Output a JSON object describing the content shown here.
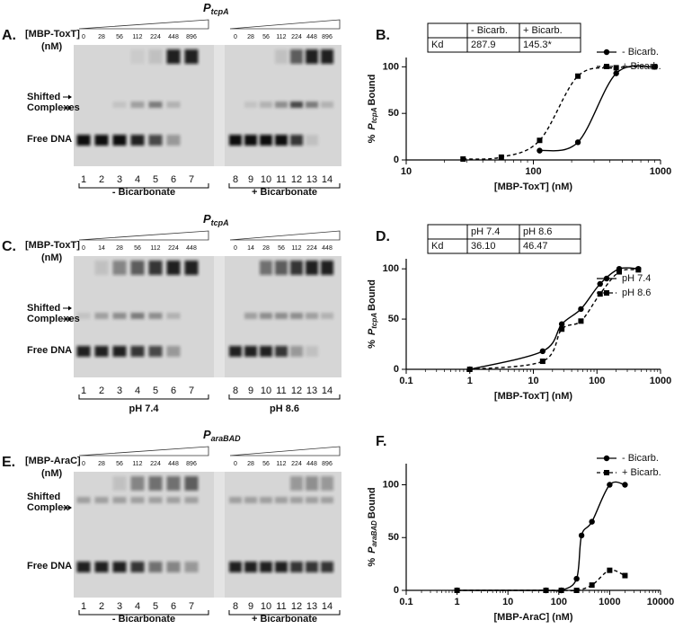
{
  "gels": [
    {
      "panel": "A.",
      "title": {
        "italic": "P",
        "sub": "tcpA"
      },
      "protein": "[MBP-ToxT]",
      "unit": "(nM)",
      "concentrations": [
        0,
        28,
        56,
        112,
        224,
        448,
        896
      ],
      "shifted": [
        "Shifted",
        "Complexes"
      ],
      "free": "Free DNA",
      "lanes": [
        1,
        2,
        3,
        4,
        5,
        6,
        7,
        8,
        9,
        10,
        11,
        12,
        13,
        14
      ],
      "groups": [
        "- Bicarbonate",
        "+ Bicarbonate"
      ]
    },
    {
      "panel": "C.",
      "title": {
        "italic": "P",
        "sub": "tcpA"
      },
      "protein": "[MBP-ToxT]",
      "unit": "(nM)",
      "concentrations": [
        0,
        14,
        28,
        56,
        112,
        224,
        448
      ],
      "shifted": [
        "Shifted",
        "Complexes"
      ],
      "free": "Free DNA",
      "lanes": [
        1,
        2,
        3,
        4,
        5,
        6,
        7,
        8,
        9,
        10,
        11,
        12,
        13,
        14
      ],
      "groups": [
        "pH 7.4",
        "pH 8.6"
      ]
    },
    {
      "panel": "E.",
      "title": {
        "italic": "P",
        "sub": "araBAD"
      },
      "protein": "[MBP-AraC]",
      "unit": "(nM)",
      "concentrations": [
        0,
        28,
        56,
        112,
        224,
        448,
        896
      ],
      "shifted": [
        "Shifted",
        "Complex"
      ],
      "free": "Free DNA",
      "lanes": [
        1,
        2,
        3,
        4,
        5,
        6,
        7,
        8,
        9,
        10,
        11,
        12,
        13,
        14
      ],
      "groups": [
        "- Bicarbonate",
        "+ Bicarbonate"
      ]
    }
  ],
  "chart_data": [
    {
      "type": "scatter",
      "panel": "B.",
      "xlabel": "[MBP-ToxT] (nM)",
      "ylabel": {
        "prefix": "%",
        "italic": "P",
        "sub": "tcpA",
        "suffix": "Bound"
      },
      "xlog": true,
      "xlim": [
        10,
        1000
      ],
      "xticks": [
        10,
        100,
        1000
      ],
      "ylim": [
        0,
        110
      ],
      "yticks": [
        0,
        50,
        100
      ],
      "legend": "upper right",
      "table": {
        "columns": [
          "- Bicarb.",
          "+ Bicarb."
        ],
        "row_label": "Kd",
        "cells": [
          "287.9",
          "145.3*"
        ]
      },
      "series": [
        {
          "name": "- Bicarb.",
          "color": "#000000",
          "marker": "circle",
          "dashed": false,
          "x": [
            112,
            224,
            448,
            896
          ],
          "values": [
            10,
            19,
            93,
            100
          ]
        },
        {
          "name": "+ Bicarb.",
          "color": "#000000",
          "marker": "square",
          "dashed": true,
          "x": [
            28,
            56,
            112,
            224,
            448,
            896
          ],
          "values": [
            1,
            3,
            21,
            90,
            99,
            100
          ]
        }
      ]
    },
    {
      "type": "scatter",
      "panel": "D.",
      "xlabel": "[MBP-ToxT] (nM)",
      "ylabel": {
        "prefix": "%",
        "italic": "P",
        "sub": "tcpA",
        "suffix": "Bound"
      },
      "xlog": true,
      "xlim": [
        0.1,
        1000
      ],
      "xticks": [
        0.1,
        1,
        10,
        100,
        1000
      ],
      "ylim": [
        0,
        110
      ],
      "yticks": [
        0,
        50,
        100
      ],
      "legend": "upper right",
      "table": {
        "columns": [
          "pH 7.4",
          "pH 8.6"
        ],
        "row_label": "Kd",
        "cells": [
          "36.10",
          "46.47"
        ]
      },
      "series": [
        {
          "name": "pH 7.4",
          "color": "#000000",
          "marker": "circle",
          "dashed": false,
          "x": [
            1,
            14,
            28,
            56,
            112,
            224,
            448
          ],
          "values": [
            0,
            18,
            45,
            60,
            85,
            100,
            100
          ]
        },
        {
          "name": "pH 8.6",
          "color": "#000000",
          "marker": "square",
          "dashed": true,
          "x": [
            1,
            14,
            28,
            56,
            112,
            224,
            448
          ],
          "values": [
            0,
            8,
            40,
            48,
            75,
            97,
            99
          ]
        }
      ]
    },
    {
      "type": "scatter",
      "panel": "F.",
      "xlabel": "[MBP-AraC] (nM)",
      "ylabel": {
        "prefix": "%",
        "italic": "P",
        "sub": "araBAD",
        "suffix": "Bound"
      },
      "xlog": true,
      "xlim": [
        0.1,
        10000
      ],
      "xticks": [
        0.1,
        1,
        10,
        100,
        1000,
        10000
      ],
      "ylim": [
        0,
        120
      ],
      "yticks": [
        0,
        50,
        100
      ],
      "legend": "upper right",
      "series": [
        {
          "name": "- Bicarb.",
          "color": "#000000",
          "marker": "circle",
          "dashed": false,
          "x": [
            1,
            56,
            112,
            224,
            280,
            448,
            1000,
            2000
          ],
          "values": [
            0,
            0,
            0,
            11,
            52,
            65,
            100,
            100
          ]
        },
        {
          "name": "+ Bicarb.",
          "color": "#000000",
          "marker": "square",
          "dashed": true,
          "x": [
            1,
            56,
            112,
            224,
            448,
            1000,
            2000
          ],
          "values": [
            0,
            0,
            0,
            0,
            5,
            19,
            14
          ]
        }
      ]
    }
  ]
}
